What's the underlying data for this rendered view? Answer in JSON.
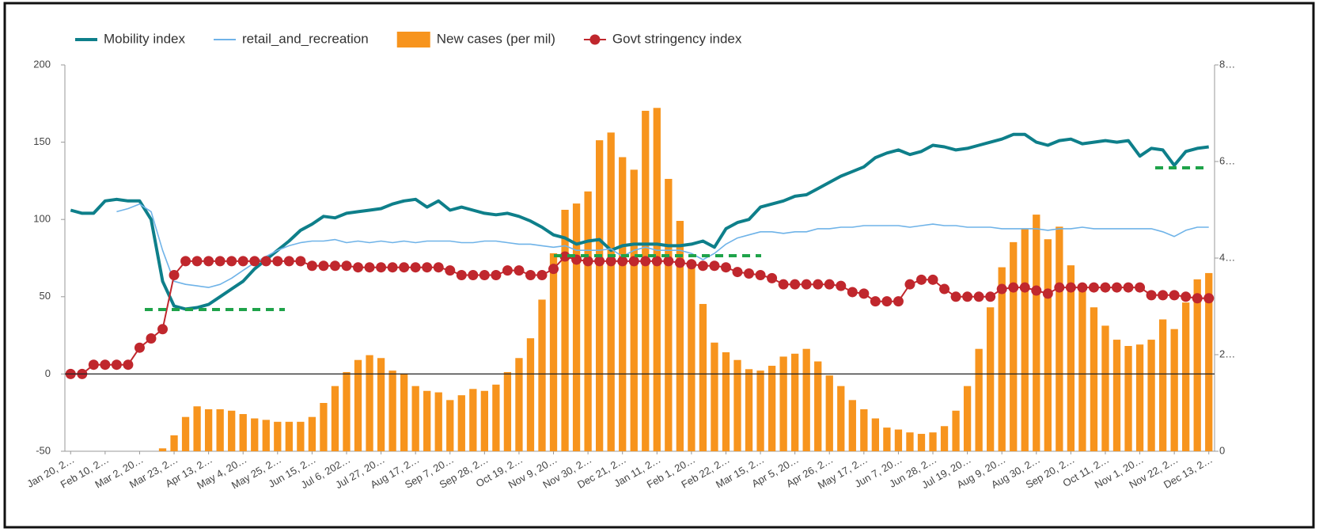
{
  "chart_data": {
    "type": "combo",
    "categories": [
      "Jan 20, 2…",
      null,
      null,
      "Feb 10, 2…",
      null,
      null,
      "Mar 2, 20…",
      null,
      null,
      "Mar 23, 2…",
      null,
      null,
      "Apr 13, 2…",
      null,
      null,
      "May 4, 20…",
      null,
      null,
      "May 25, 2…",
      null,
      null,
      "Jun 15, 2…",
      null,
      null,
      "Jul 6, 202…",
      null,
      null,
      "Jul 27, 20…",
      null,
      null,
      "Aug 17, 2…",
      null,
      null,
      "Sep 7, 20…",
      null,
      null,
      "Sep 28, 2…",
      null,
      null,
      "Oct 19, 2…",
      null,
      null,
      "Nov 9, 20…",
      null,
      null,
      "Nov 30, 2…",
      null,
      null,
      "Dec 21, 2…",
      null,
      null,
      "Jan 11, 2…",
      null,
      null,
      "Feb 1, 20…",
      null,
      null,
      "Feb 22, 2…",
      null,
      null,
      "Mar 15, 2…",
      null,
      null,
      "Apr 5, 20…",
      null,
      null,
      "Apr 26, 2…",
      null,
      null,
      "May 17, 2…",
      null,
      null,
      "Jun 7, 20…",
      null,
      null,
      "Jun 28, 2…",
      null,
      null,
      "Jul 19, 20…",
      null,
      null,
      "Aug 9, 20…",
      null,
      null,
      "Aug 30, 2…",
      null,
      null,
      "Sep 20, 2…",
      null,
      null,
      "Oct 11, 2…",
      null,
      null,
      "Nov 1, 20…",
      null,
      null,
      "Nov 22, 2…",
      null,
      null,
      "Dec 13, 2…"
    ],
    "series": [
      {
        "name": "Mobility index",
        "type": "line",
        "color": "#0e7f8a",
        "width": 4,
        "values": [
          106,
          104,
          104,
          112,
          113,
          112,
          112,
          100,
          60,
          44,
          42,
          43,
          45,
          50,
          55,
          60,
          68,
          74,
          80,
          86,
          93,
          97,
          102,
          101,
          104,
          105,
          106,
          107,
          110,
          112,
          113,
          108,
          112,
          106,
          108,
          106,
          104,
          103,
          104,
          102,
          99,
          95,
          90,
          88,
          84,
          86,
          87,
          80,
          83,
          84,
          84,
          84,
          83,
          83,
          84,
          86,
          82,
          94,
          98,
          100,
          108,
          110,
          112,
          115,
          116,
          120,
          124,
          128,
          131,
          134,
          140,
          143,
          145,
          142,
          144,
          148,
          147,
          145,
          146,
          148,
          150,
          152,
          155,
          155,
          150,
          148,
          151,
          152,
          149,
          150,
          151,
          150,
          151,
          141,
          146,
          145,
          135,
          144,
          146,
          147
        ]
      },
      {
        "name": "retail_and_recreation",
        "type": "line",
        "color": "#6fb3e8",
        "width": 1.6,
        "values": [
          null,
          null,
          null,
          null,
          105,
          107,
          110,
          105,
          80,
          60,
          58,
          57,
          56,
          58,
          62,
          67,
          72,
          76,
          80,
          83,
          85,
          86,
          86,
          87,
          85,
          86,
          85,
          86,
          85,
          86,
          85,
          86,
          86,
          86,
          85,
          85,
          86,
          86,
          85,
          84,
          84,
          83,
          82,
          83,
          80,
          80,
          80,
          81,
          76,
          80,
          82,
          80,
          80,
          80,
          78,
          74,
          78,
          84,
          88,
          90,
          92,
          92,
          91,
          92,
          92,
          94,
          94,
          95,
          95,
          96,
          96,
          96,
          96,
          95,
          96,
          97,
          96,
          96,
          95,
          95,
          95,
          94,
          94,
          94,
          94,
          93,
          94,
          94,
          95,
          94,
          94,
          94,
          94,
          94,
          94,
          92,
          89,
          93,
          95,
          95
        ]
      },
      {
        "name": "New cases (per mil)",
        "type": "bar",
        "axis": "y2",
        "color": "#f7941d",
        "values": [
          0,
          0,
          0,
          0,
          0,
          0,
          0,
          0,
          6,
          33,
          71,
          93,
          87,
          87,
          84,
          77,
          68,
          65,
          61,
          61,
          61,
          71,
          100,
          135,
          164,
          189,
          199,
          193,
          167,
          161,
          135,
          125,
          122,
          106,
          116,
          129,
          125,
          138,
          164,
          193,
          234,
          314,
          410,
          500,
          513,
          538,
          644,
          660,
          609,
          583,
          705,
          711,
          564,
          477,
          385,
          305,
          225,
          205,
          189,
          170,
          167,
          177,
          196,
          202,
          212,
          186,
          157,
          135,
          106,
          87,
          68,
          49,
          45,
          39,
          36,
          39,
          52,
          84,
          135,
          212,
          298,
          381,
          433,
          461,
          490,
          439,
          465,
          385,
          337,
          298,
          260,
          231,
          218,
          221,
          231,
          273,
          253,
          308,
          356,
          369
        ]
      },
      {
        "name": "Govt stringency index",
        "type": "line_markers",
        "color": "#c0272d",
        "width": 2,
        "values": [
          0,
          0,
          6,
          6,
          6,
          6,
          17,
          23,
          29,
          64,
          73,
          73,
          73,
          73,
          73,
          73,
          73,
          73,
          73,
          73,
          73,
          70,
          70,
          70,
          70,
          69,
          69,
          69,
          69,
          69,
          69,
          69,
          69,
          67,
          64,
          64,
          64,
          64,
          67,
          67,
          64,
          64,
          68,
          76,
          74,
          73,
          73,
          73,
          73,
          73,
          73,
          73,
          73,
          72,
          71,
          70,
          70,
          69,
          66,
          65,
          64,
          62,
          58,
          58,
          58,
          58,
          58,
          57,
          53,
          52,
          47,
          47,
          47,
          58,
          61,
          61,
          55,
          50,
          50,
          50,
          50,
          55,
          56,
          56,
          54,
          52,
          56,
          56,
          56,
          56,
          56,
          56,
          56,
          56,
          51,
          51,
          51,
          50,
          49,
          49
        ]
      }
    ],
    "ylim": [
      -50,
      200
    ],
    "yticks": [
      -50,
      0,
      50,
      100,
      150,
      200
    ],
    "y2lim": [
      0,
      800
    ],
    "y2ticks": [
      0,
      {
        "value": 200,
        "label": "2…"
      },
      {
        "value": 400,
        "label": "4…"
      },
      {
        "value": 600,
        "label": "6…"
      },
      {
        "value": 800,
        "label": "8…"
      }
    ],
    "legend": "top"
  }
}
